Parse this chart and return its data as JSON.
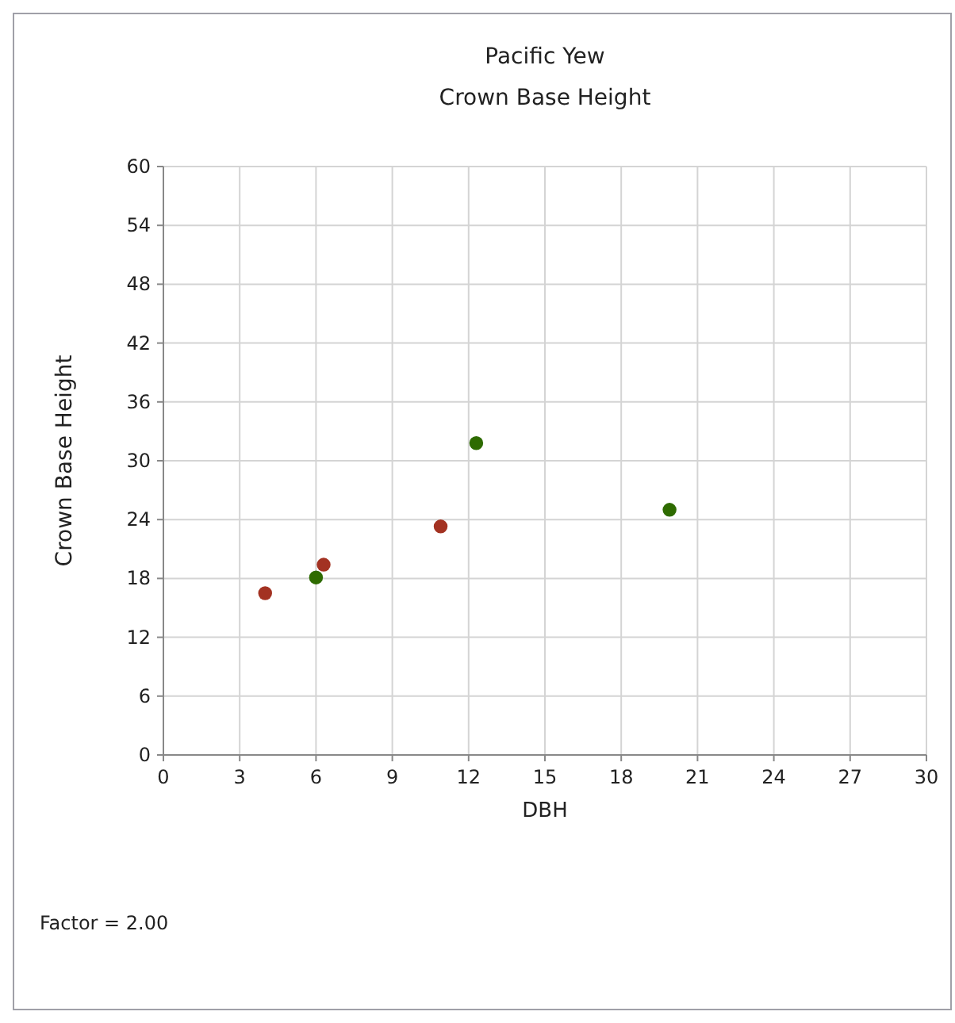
{
  "chart_data": {
    "type": "scatter",
    "title": "Pacific Yew",
    "subtitle": "Crown Base Height",
    "xlabel": "DBH",
    "ylabel": "Crown Base Height",
    "series": [
      {
        "color": "#a33222",
        "x": [
          4.0,
          6.3,
          10.9
        ],
        "values": [
          16.5,
          19.4,
          23.3
        ]
      },
      {
        "color": "#2e6b00",
        "x": [
          6.0,
          12.3,
          19.9
        ],
        "values": [
          18.1,
          31.8,
          25.0
        ]
      }
    ],
    "xlim": [
      0,
      30
    ],
    "xticks": [
      0,
      3,
      6,
      9,
      12,
      15,
      18,
      21,
      24,
      27,
      30
    ],
    "ylim": [
      0,
      60
    ],
    "yticks": [
      0,
      6,
      12,
      18,
      24,
      30,
      36,
      42,
      48,
      54,
      60
    ],
    "grid": true,
    "marker": "circle",
    "annotations": [
      "Factor = 2.00"
    ]
  }
}
